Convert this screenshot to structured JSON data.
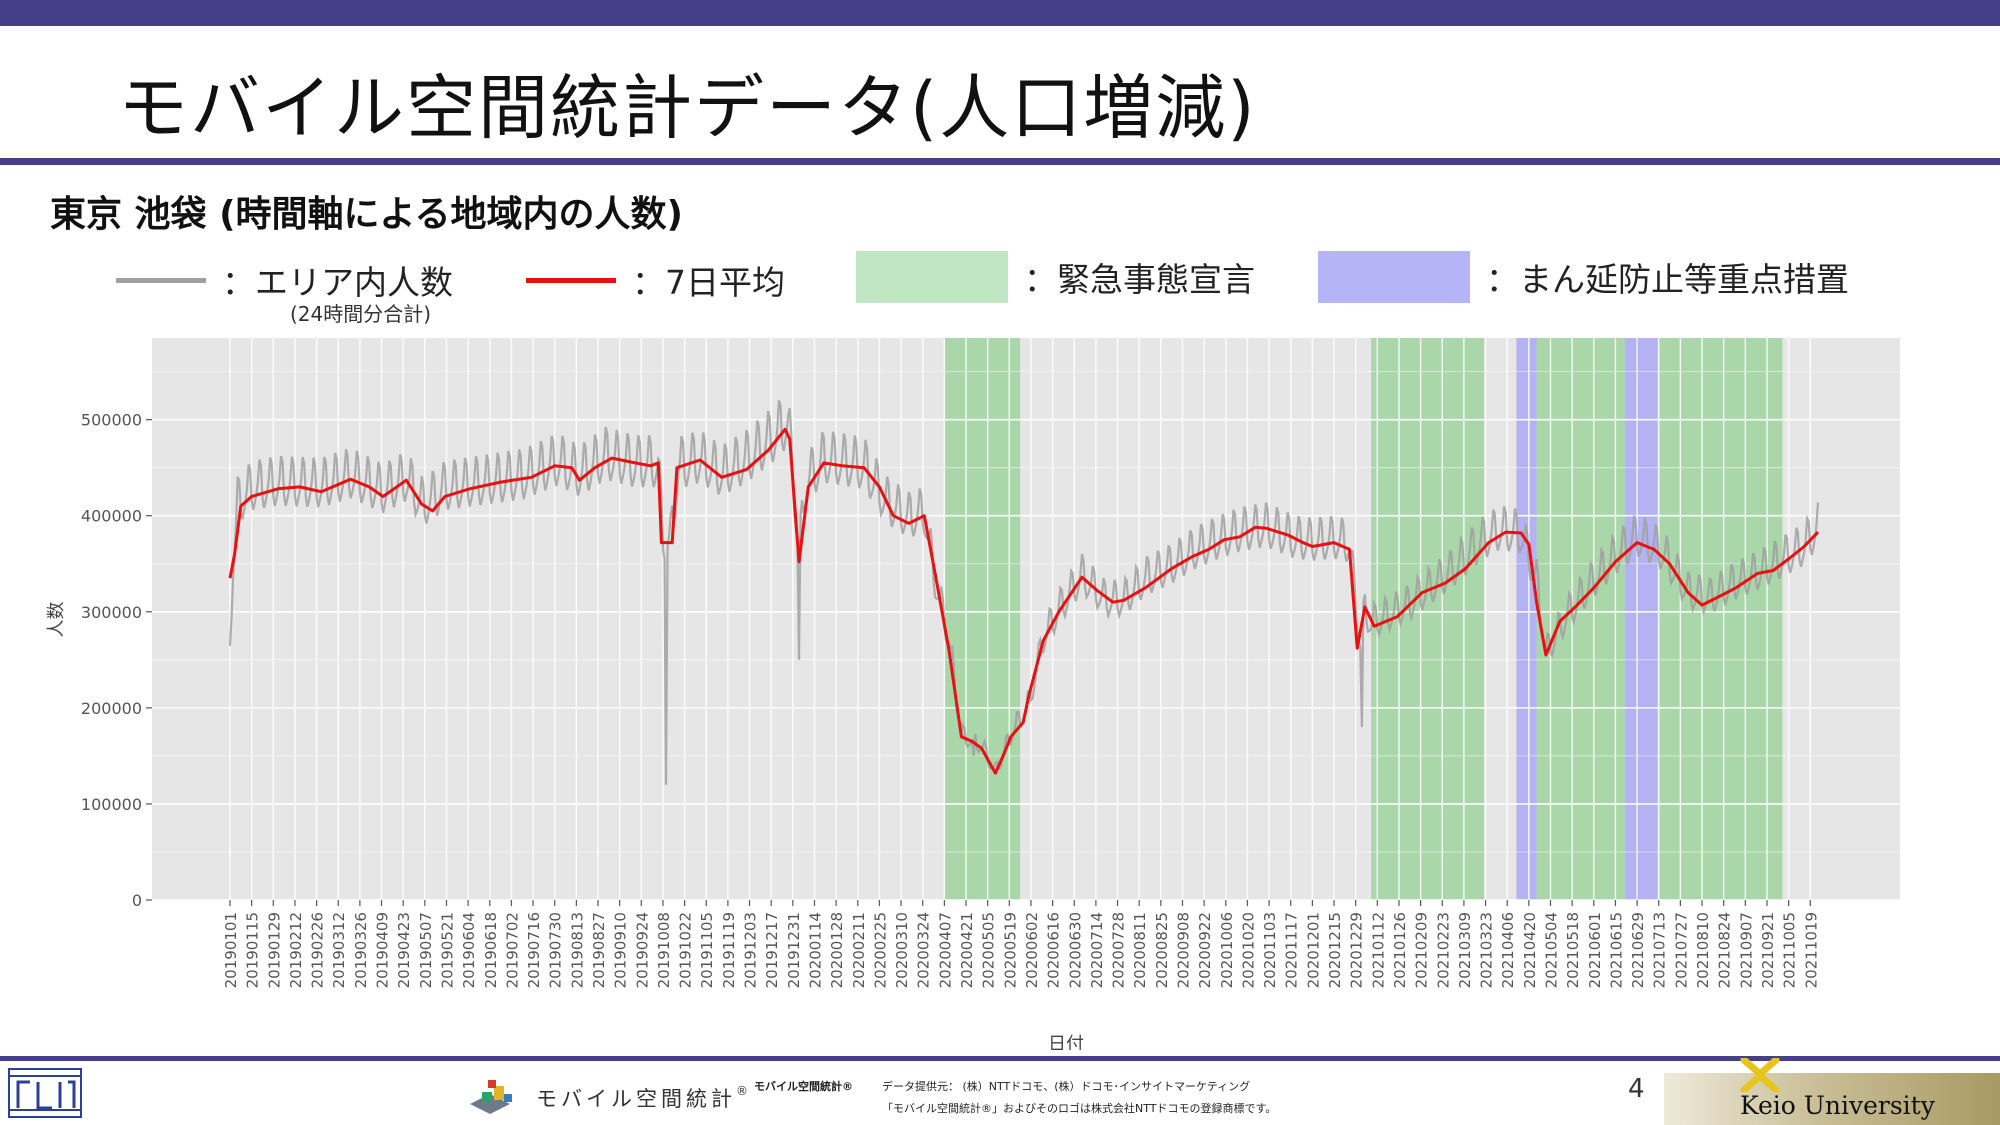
{
  "slide": {
    "title": "モバイル空間統計データ(人口増減)",
    "subtitle": "東京 池袋 (時間軸による地域内の人数)",
    "page_number": "4"
  },
  "legend": {
    "area_label": "：エリア内人数",
    "area_sublabel": "(24時間分合計)",
    "avg_label": "：7日平均",
    "emergency_label": "：緊急事態宣言",
    "manen_label": "：まん延防止等重点措置"
  },
  "footer": {
    "logo_text": "モバイル空間統計",
    "logo_mark": "®",
    "brand_small": "モバイル空間統計®",
    "provider": "データ提供元： (株）NTTドコモ、(株）ドコモ･インサイトマーケティング",
    "trademark": "「モバイル空間統計®」およびそのロゴは株式会社NTTドコモの登録商標です。",
    "university": "Keio University"
  },
  "colors": {
    "header_bar": "#453f87",
    "daily": "#a0a0a0",
    "avg": "#e81010",
    "emergency": "#9fd39f",
    "manen": "#a9a9f5",
    "plot_bg": "#e6e6e6"
  },
  "chart_data": {
    "type": "line",
    "title": "",
    "xlabel": "日付",
    "ylabel": "人数",
    "ylim": [
      0,
      585000
    ],
    "yticks": [
      0,
      100000,
      200000,
      300000,
      400000,
      500000
    ],
    "ytick_labels": [
      "0",
      "100000",
      "200000",
      "300000",
      "400000",
      "500000"
    ],
    "x_start": "20190101",
    "x_end": "20211024",
    "xtick_labels": [
      "20190101",
      "20190115",
      "20190129",
      "20190212",
      "20190226",
      "20190312",
      "20190326",
      "20190409",
      "20190423",
      "20190507",
      "20190521",
      "20190604",
      "20190618",
      "20190702",
      "20190716",
      "20190730",
      "20190813",
      "20190827",
      "20190910",
      "20190924",
      "20191008",
      "20191022",
      "20191105",
      "20191119",
      "20191203",
      "20191217",
      "20191231",
      "20200114",
      "20200128",
      "20200211",
      "20200225",
      "20200310",
      "20200324",
      "20200407",
      "20200421",
      "20200505",
      "20200519",
      "20200602",
      "20200616",
      "20200630",
      "20200714",
      "20200728",
      "20200811",
      "20200825",
      "20200908",
      "20200922",
      "20201006",
      "20201020",
      "20201103",
      "20201117",
      "20201201",
      "20201215",
      "20201229",
      "20210112",
      "20210126",
      "20210209",
      "20210223",
      "20210309",
      "20210323",
      "20210406",
      "20210420",
      "20210504",
      "20210518",
      "20210601",
      "20210615",
      "20210629",
      "20210713",
      "20210727",
      "20210810",
      "20210824",
      "20210907",
      "20210921",
      "20211005",
      "20211019"
    ],
    "grid": true,
    "legend": "top",
    "shaded_periods": [
      {
        "type": "emergency",
        "start": "20200407",
        "end": "20200525"
      },
      {
        "type": "emergency",
        "start": "20210108",
        "end": "20210321"
      },
      {
        "type": "manen",
        "start": "20210412",
        "end": "20210424"
      },
      {
        "type": "emergency",
        "start": "20210425",
        "end": "20210620"
      },
      {
        "type": "manen",
        "start": "20210621",
        "end": "20210711"
      },
      {
        "type": "emergency",
        "start": "20210712",
        "end": "20210930"
      }
    ],
    "series": [
      {
        "name": "エリア内人数",
        "style": "daily",
        "anchors": [
          [
            "20190101",
            270000
          ],
          [
            "20190103",
            345000
          ],
          [
            "20190106",
            410000
          ],
          [
            "20190115",
            425000
          ],
          [
            "20190201",
            430000
          ],
          [
            "20190301",
            428000
          ],
          [
            "20190320",
            438000
          ],
          [
            "20190410",
            422000
          ],
          [
            "20190425",
            435000
          ],
          [
            "20190506",
            408000
          ],
          [
            "20190520",
            425000
          ],
          [
            "20190610",
            430000
          ],
          [
            "20190710",
            437000
          ],
          [
            "20190801",
            452000
          ],
          [
            "20190815",
            440000
          ],
          [
            "20190901",
            458000
          ],
          [
            "20190920",
            450000
          ],
          [
            "20191005",
            450000
          ],
          [
            "20191008",
            372000
          ],
          [
            "20191013",
            372000
          ],
          [
            "20191018",
            448000
          ],
          [
            "20191101",
            455000
          ],
          [
            "20191115",
            440000
          ],
          [
            "20191201",
            455000
          ],
          [
            "20191220",
            480000
          ],
          [
            "20191228",
            495000
          ],
          [
            "20200101",
            420000
          ],
          [
            "20200104",
            355000
          ],
          [
            "20200108",
            430000
          ],
          [
            "20200120",
            455000
          ],
          [
            "20200201",
            452000
          ],
          [
            "20200215",
            448000
          ],
          [
            "20200301",
            410000
          ],
          [
            "20200315",
            395000
          ],
          [
            "20200325",
            400000
          ],
          [
            "20200401",
            330000
          ],
          [
            "20200410",
            270000
          ],
          [
            "20200418",
            170000
          ],
          [
            "20200501",
            160000
          ],
          [
            "20200510",
            132000
          ],
          [
            "20200520",
            170000
          ],
          [
            "20200601",
            205000
          ],
          [
            "20200610",
            270000
          ],
          [
            "20200620",
            300000
          ],
          [
            "20200705",
            335000
          ],
          [
            "20200720",
            310000
          ],
          [
            "20200801",
            310000
          ],
          [
            "20200815",
            332000
          ],
          [
            "20200901",
            345000
          ],
          [
            "20200915",
            360000
          ],
          [
            "20201001",
            372000
          ],
          [
            "20201015",
            380000
          ],
          [
            "20201101",
            385000
          ],
          [
            "20201120",
            372000
          ],
          [
            "20201201",
            370000
          ],
          [
            "20201215",
            372000
          ],
          [
            "20201225",
            368000
          ],
          [
            "20210101",
            265000
          ],
          [
            "20210104",
            300000
          ],
          [
            "20210108",
            285000
          ],
          [
            "20210201",
            305000
          ],
          [
            "20210301",
            340000
          ],
          [
            "20210320",
            370000
          ],
          [
            "20210401",
            382000
          ],
          [
            "20210415",
            378000
          ],
          [
            "20210425",
            330000
          ],
          [
            "20210501",
            255000
          ],
          [
            "20210515",
            295000
          ],
          [
            "20210601",
            330000
          ],
          [
            "20210615",
            355000
          ],
          [
            "20210629",
            375000
          ],
          [
            "20210715",
            360000
          ],
          [
            "20210801",
            318000
          ],
          [
            "20210815",
            312000
          ],
          [
            "20210901",
            328000
          ],
          [
            "20210915",
            338000
          ],
          [
            "20211001",
            352000
          ],
          [
            "20211015",
            365000
          ],
          [
            "20211024",
            385000
          ]
        ],
        "dips": [
          [
            "20191010",
            120000
          ],
          [
            "20200104",
            250000
          ],
          [
            "20210102",
            180000
          ],
          [
            "20200426",
            150000
          ]
        ]
      },
      {
        "name": "7日平均",
        "style": "avg",
        "points": [
          [
            "20190101",
            335000
          ],
          [
            "20190104",
            360000
          ],
          [
            "20190108",
            410000
          ],
          [
            "20190115",
            420000
          ],
          [
            "20190201",
            428000
          ],
          [
            "20190215",
            430000
          ],
          [
            "20190301",
            425000
          ],
          [
            "20190320",
            438000
          ],
          [
            "20190401",
            430000
          ],
          [
            "20190410",
            420000
          ],
          [
            "20190425",
            437000
          ],
          [
            "20190505",
            412000
          ],
          [
            "20190512",
            405000
          ],
          [
            "20190520",
            420000
          ],
          [
            "20190605",
            428000
          ],
          [
            "20190625",
            435000
          ],
          [
            "20190715",
            440000
          ],
          [
            "20190730",
            452000
          ],
          [
            "20190810",
            450000
          ],
          [
            "20190815",
            437000
          ],
          [
            "20190825",
            450000
          ],
          [
            "20190905",
            460000
          ],
          [
            "20190920",
            455000
          ],
          [
            "20190930",
            452000
          ],
          [
            "20191005",
            455000
          ],
          [
            "20191007",
            372000
          ],
          [
            "20191014",
            372000
          ],
          [
            "20191017",
            450000
          ],
          [
            "20191101",
            458000
          ],
          [
            "20191115",
            440000
          ],
          [
            "20191201",
            448000
          ],
          [
            "20191215",
            468000
          ],
          [
            "20191226",
            490000
          ],
          [
            "20191229",
            480000
          ],
          [
            "20200104",
            352000
          ],
          [
            "20200110",
            430000
          ],
          [
            "20200120",
            455000
          ],
          [
            "20200201",
            452000
          ],
          [
            "20200215",
            450000
          ],
          [
            "20200225",
            430000
          ],
          [
            "20200305",
            400000
          ],
          [
            "20200315",
            392000
          ],
          [
            "20200325",
            400000
          ],
          [
            "20200401",
            340000
          ],
          [
            "20200410",
            260000
          ],
          [
            "20200418",
            170000
          ],
          [
            "20200425",
            165000
          ],
          [
            "20200501",
            158000
          ],
          [
            "20200510",
            132000
          ],
          [
            "20200515",
            150000
          ],
          [
            "20200520",
            170000
          ],
          [
            "20200528",
            185000
          ],
          [
            "20200601",
            215000
          ],
          [
            "20200610",
            270000
          ],
          [
            "20200620",
            300000
          ],
          [
            "20200705",
            336000
          ],
          [
            "20200715",
            322000
          ],
          [
            "20200725",
            310000
          ],
          [
            "20200801",
            312000
          ],
          [
            "20200815",
            325000
          ],
          [
            "20200901",
            345000
          ],
          [
            "20200915",
            358000
          ],
          [
            "20200925",
            365000
          ],
          [
            "20201005",
            375000
          ],
          [
            "20201015",
            378000
          ],
          [
            "20201025",
            388000
          ],
          [
            "20201101",
            387000
          ],
          [
            "20201115",
            380000
          ],
          [
            "20201125",
            372000
          ],
          [
            "20201201",
            368000
          ],
          [
            "20201215",
            372000
          ],
          [
            "20201225",
            365000
          ],
          [
            "20201230",
            262000
          ],
          [
            "20210104",
            305000
          ],
          [
            "20210110",
            285000
          ],
          [
            "20210125",
            295000
          ],
          [
            "20210210",
            320000
          ],
          [
            "20210225",
            330000
          ],
          [
            "20210310",
            345000
          ],
          [
            "20210325",
            372000
          ],
          [
            "20210405",
            383000
          ],
          [
            "20210415",
            382000
          ],
          [
            "20210420",
            370000
          ],
          [
            "20210425",
            310000
          ],
          [
            "20210501",
            255000
          ],
          [
            "20210510",
            290000
          ],
          [
            "20210520",
            305000
          ],
          [
            "20210601",
            325000
          ],
          [
            "20210615",
            352000
          ],
          [
            "20210629",
            372000
          ],
          [
            "20210710",
            365000
          ],
          [
            "20210720",
            350000
          ],
          [
            "20210801",
            320000
          ],
          [
            "20210810",
            307000
          ],
          [
            "20210820",
            315000
          ],
          [
            "20210901",
            325000
          ],
          [
            "20210915",
            340000
          ],
          [
            "20210925",
            343000
          ],
          [
            "20211005",
            355000
          ],
          [
            "20211015",
            368000
          ],
          [
            "20211024",
            383000
          ]
        ]
      }
    ]
  }
}
